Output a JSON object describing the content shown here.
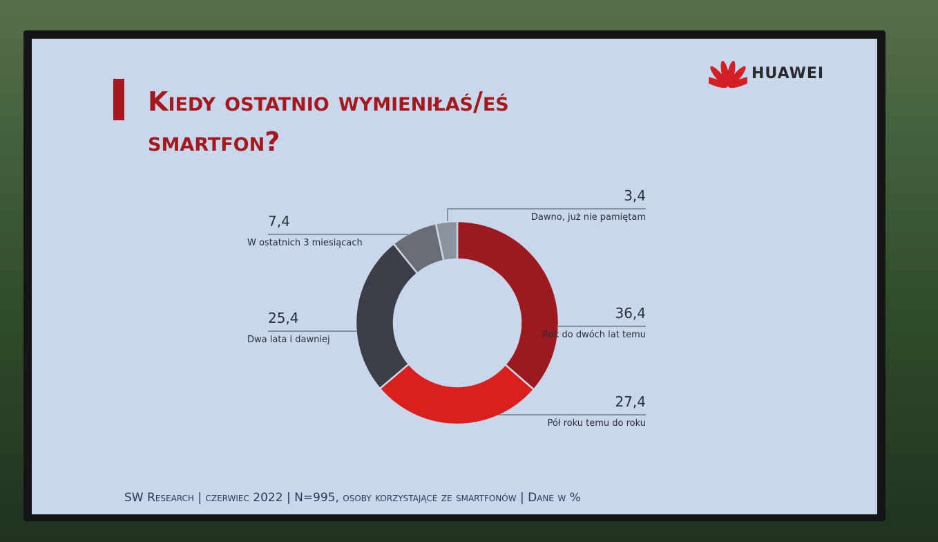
{
  "brand": "HUAWEI",
  "chart_data": {
    "type": "donut",
    "title": "Kiedy ostatnio wymieniłaś/eś smartfon?",
    "categories": [
      "Rok do dwóch lat temu",
      "Pół roku temu do roku",
      "Dwa lata i dawniej",
      "W ostatnich 3 miesiącach",
      "Dawno, już nie pamiętam"
    ],
    "values": [
      36.4,
      27.4,
      25.4,
      7.4,
      3.4
    ],
    "value_labels": [
      "36,4",
      "27,4",
      "25,4",
      "7,4",
      "3,4"
    ],
    "colors": [
      "#9c1a1e",
      "#d9201f",
      "#3b3e45",
      "#6a6e74",
      "#8d939c"
    ],
    "note": "SW Research | czerwiec 2022 | N=995, osoby korzystające ze smartfonów | Dane w %"
  }
}
